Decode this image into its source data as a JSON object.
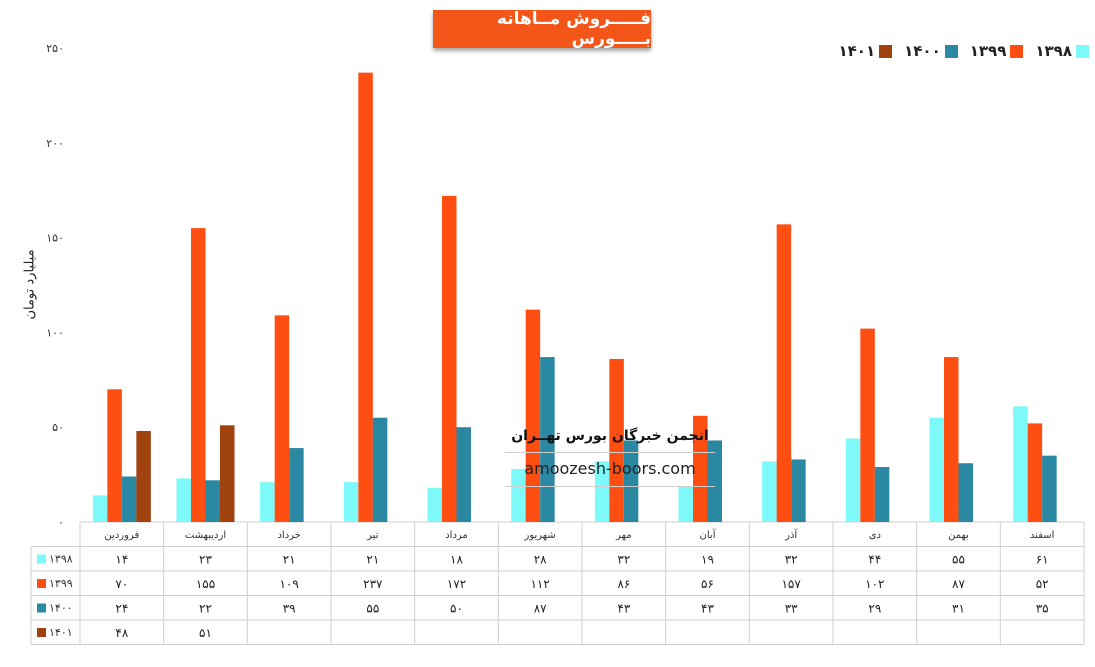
{
  "chart_data": {
    "type": "bar",
    "title": "فـــــروش مــاهانه بـــــورس",
    "ylabel": "میلیارد تومان",
    "ylim": [
      0,
      250
    ],
    "yticks": [
      "۰",
      "۵۰",
      "۱۰۰",
      "۱۵۰",
      "۲۰۰",
      "۲۵۰"
    ],
    "categories": [
      "فروردین",
      "اردیبهشت",
      "خرداد",
      "تیر",
      "مرداد",
      "شهریور",
      "مهر",
      "آبان",
      "آذر",
      "دی",
      "بهمن",
      "اسفند"
    ],
    "series": [
      {
        "name": "۱۳۹۸",
        "color": "#7df9f9",
        "values": [
          14,
          23,
          21,
          21,
          18,
          28,
          32,
          19,
          32,
          44,
          55,
          61
        ],
        "labels": [
          "۱۴",
          "۲۳",
          "۲۱",
          "۲۱",
          "۱۸",
          "۲۸",
          "۳۲",
          "۱۹",
          "۳۲",
          "۴۴",
          "۵۵",
          "۶۱"
        ]
      },
      {
        "name": "۱۳۹۹",
        "color": "#fe4e12",
        "values": [
          70,
          155,
          109,
          237,
          172,
          112,
          86,
          56,
          157,
          102,
          87,
          52
        ],
        "labels": [
          "۷۰",
          "۱۵۵",
          "۱۰۹",
          "۲۳۷",
          "۱۷۲",
          "۱۱۲",
          "۸۶",
          "۵۶",
          "۱۵۷",
          "۱۰۲",
          "۸۷",
          "۵۲"
        ]
      },
      {
        "name": "۱۴۰۰",
        "color": "#2a88a3",
        "values": [
          24,
          22,
          39,
          55,
          50,
          87,
          43,
          43,
          33,
          29,
          31,
          35
        ],
        "labels": [
          "۲۴",
          "۲۲",
          "۳۹",
          "۵۵",
          "۵۰",
          "۸۷",
          "۴۳",
          "۴۳",
          "۳۳",
          "۲۹",
          "۳۱",
          "۳۵"
        ]
      },
      {
        "name": "۱۴۰۱",
        "color": "#a0430f",
        "values": [
          48,
          51,
          null,
          null,
          null,
          null,
          null,
          null,
          null,
          null,
          null,
          null
        ],
        "labels": [
          "۴۸",
          "۵۱",
          "",
          "",
          "",
          "",
          "",
          "",
          "",
          "",
          "",
          ""
        ]
      }
    ],
    "legend": "top-right",
    "data_table": true
  },
  "watermark": {
    "title": "انجمن خبرگان بورس تهــران",
    "url": "amoozesh-boors.com"
  }
}
